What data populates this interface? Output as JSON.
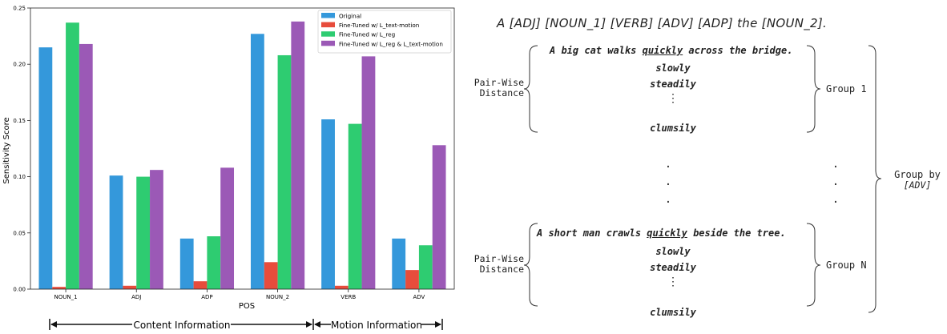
{
  "chart_data": {
    "type": "bar",
    "xlabel": "POS",
    "ylabel": "Sensitivity Score",
    "ylim": [
      0,
      0.25
    ],
    "yticks": [
      "0.00",
      "0.05",
      "0.10",
      "0.15",
      "0.20",
      "0.25"
    ],
    "categories": [
      "NOUN_1",
      "ADJ",
      "ADP",
      "NOUN_2",
      "VERB",
      "ADV"
    ],
    "legend_position": "top-right",
    "series": [
      {
        "name": "Original",
        "color": "#3498db",
        "values": [
          0.215,
          0.101,
          0.045,
          0.227,
          0.151,
          0.045
        ]
      },
      {
        "name": "Fine-Tuned w/ L_text-motion",
        "color": "#e74c3c",
        "values": [
          0.002,
          0.003,
          0.007,
          0.024,
          0.003,
          0.017
        ]
      },
      {
        "name": "Fine-Tuned w/ L_reg",
        "color": "#2ecc71",
        "values": [
          0.237,
          0.1,
          0.047,
          0.208,
          0.147,
          0.039
        ]
      },
      {
        "name": "Fine-Tuned w/ L_reg & L_text-motion",
        "color": "#9b59b6",
        "values": [
          0.218,
          0.106,
          0.108,
          0.238,
          0.207,
          0.128
        ]
      }
    ],
    "brackets": [
      {
        "label": "Content Information"
      },
      {
        "label": "Motion Information"
      }
    ]
  },
  "diagram": {
    "template": "A [ADJ] [NOUN_1] [VERB] [ADV] [ADP] the [NOUN_2].",
    "pairwise_label_1": "Pair-Wise",
    "pairwise_label_2": "Distance",
    "group1": {
      "prefix": "A big cat walks ",
      "highlight": "quickly",
      "suffix": " across the bridge.",
      "alternatives": [
        "slowly",
        "steadily",
        "clumsily"
      ],
      "label": "Group 1"
    },
    "groupN": {
      "prefix": "A short man crawls ",
      "highlight": "quickly",
      "suffix": " beside the tree.",
      "alternatives": [
        "slowly",
        "steadily",
        "clumsily"
      ],
      "label": "Group N"
    },
    "group_by_line1": "Group by",
    "group_by_line2": "[ADV]"
  }
}
